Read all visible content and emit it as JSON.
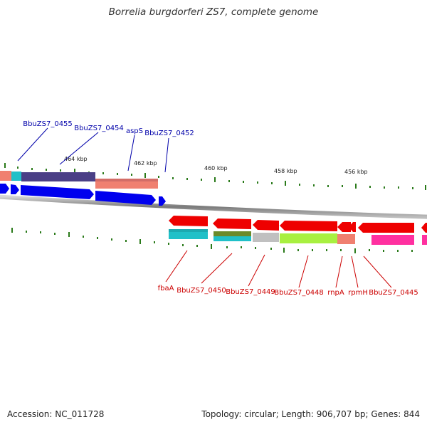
{
  "title": "Borrelia burgdorferi ZS7, complete genome",
  "footer": {
    "accession": "Accession: NC_011728",
    "summary": "Topology: circular; Length: 906,707 bp; Genes: 844"
  },
  "colors": {
    "backbone": "#8a8a8a",
    "forward_arrow": "#0000ee",
    "reverse_arrow": "#ee0000",
    "tick": "#2a7a1a",
    "top_label": "#0000aa",
    "bottom_label": "#cc0000"
  },
  "scale_labels": [
    "464 kbp",
    "462 kbp",
    "460 kbp",
    "458 kbp",
    "456 kbp"
  ],
  "top_genes": [
    "BbuZS7_0455",
    "BbuZS7_0454",
    "aspS",
    "BbuZS7_0452"
  ],
  "bottom_genes": [
    "fbaA",
    "BbuZS7_0450",
    "BbuZS7_0449",
    "BbuZS7_0448",
    "rnpA",
    "rpmH",
    "BbuZS7_0445"
  ]
}
